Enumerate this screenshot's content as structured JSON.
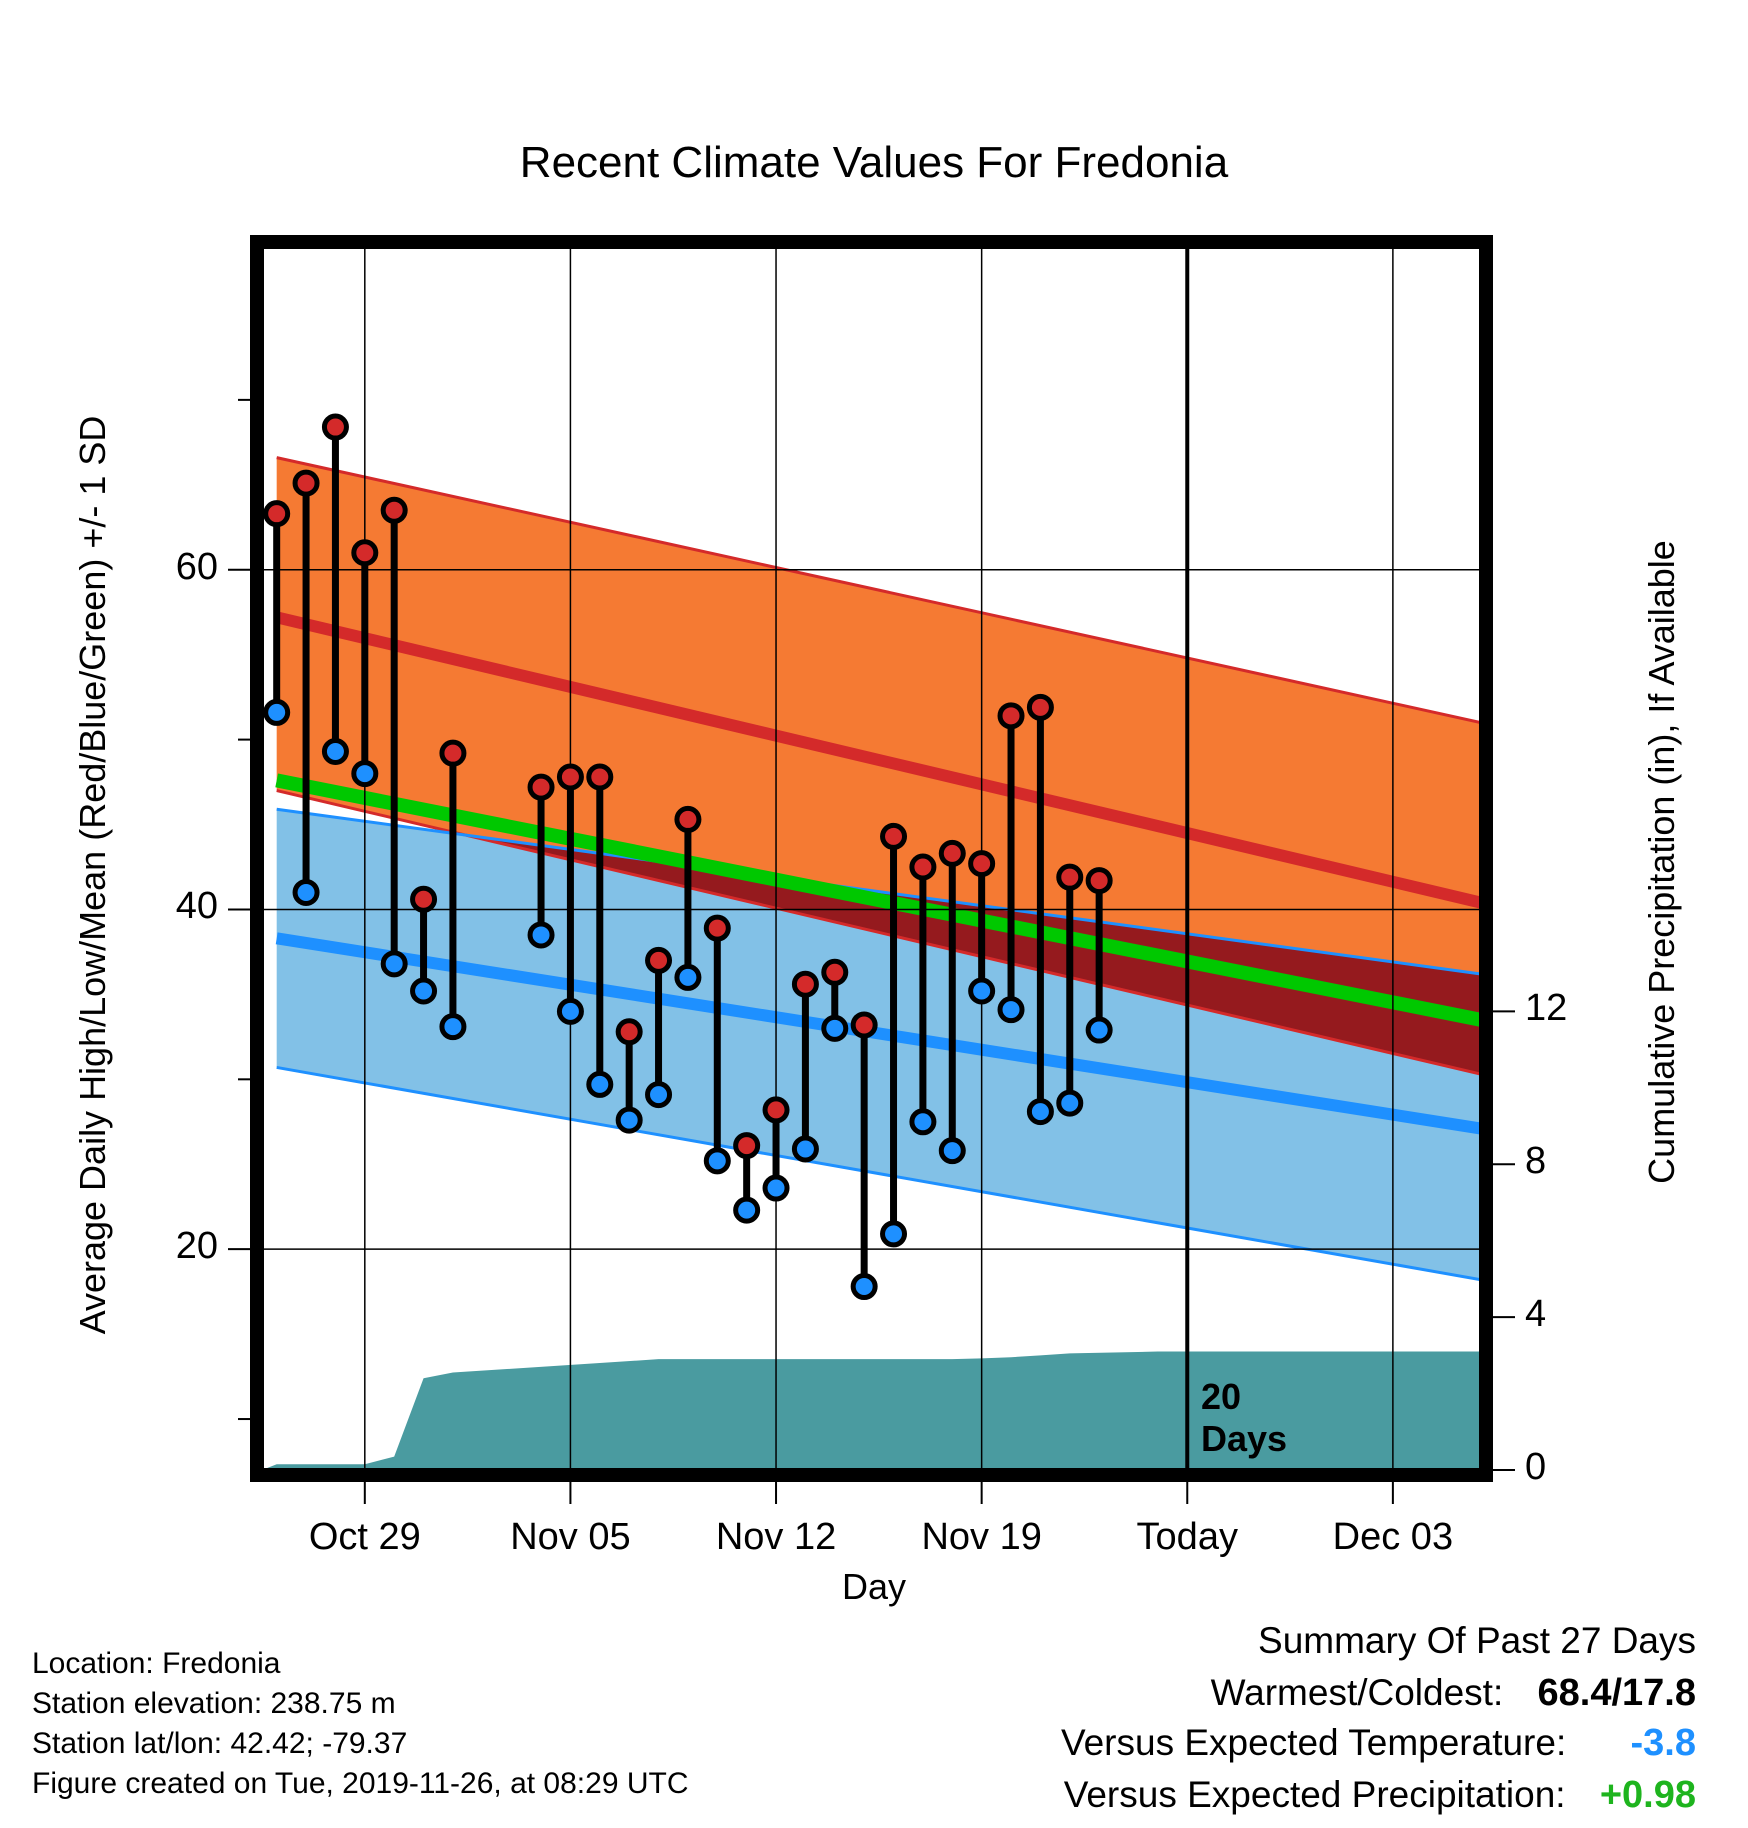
{
  "chart_data": {
    "type": "line",
    "title": "Recent Climate Values For Fredonia",
    "xlabel": "Day",
    "ylabel": "Average Daily High/Low/Mean (Red/Blue/Green) +/- 1 SD",
    "y2label": "Cumulative Precipitation (in), If Available",
    "ylim": [
      7,
      79
    ],
    "y2lim": [
      0,
      32
    ],
    "yticks": [
      20,
      40,
      60
    ],
    "yticks_labels": [
      "20",
      "40",
      "60"
    ],
    "y2ticks": [
      0,
      4,
      8,
      12
    ],
    "y2ticks_labels": [
      "0",
      "4",
      "8",
      "12"
    ],
    "xlim": [
      "2019-10-25 12:00",
      "2019-12-06"
    ],
    "xticks": [
      "2019-10-29",
      "2019-11-05",
      "2019-11-12",
      "2019-11-19",
      "2019-11-26",
      "2019-12-03"
    ],
    "xtick_labels": [
      "Oct 29",
      "Nov 05",
      "Nov 12",
      "Nov 19",
      "Today",
      "Dec 03"
    ],
    "grid": true,
    "today": "2019-11-26",
    "today_annotation": [
      "20",
      "Days"
    ],
    "normals": {
      "dates": [
        "2019-10-26",
        "2019-12-06"
      ],
      "high_mean": [
        57.2,
        40.4
      ],
      "high_upper": [
        66.6,
        51.0
      ],
      "high_lower": [
        47.0,
        30.3
      ],
      "low_mean": [
        38.3,
        27.1
      ],
      "low_upper": [
        45.9,
        36.2
      ],
      "low_lower": [
        30.7,
        18.2
      ],
      "mean": [
        47.6,
        33.5
      ]
    },
    "observed": {
      "dates": [
        "2019-10-26",
        "2019-10-27",
        "2019-10-28",
        "2019-10-29",
        "2019-10-30",
        "2019-10-31",
        "2019-11-01",
        "2019-11-04",
        "2019-11-05",
        "2019-11-06",
        "2019-11-07",
        "2019-11-08",
        "2019-11-09",
        "2019-11-10",
        "2019-11-11",
        "2019-11-12",
        "2019-11-13",
        "2019-11-14",
        "2019-11-15",
        "2019-11-16",
        "2019-11-17",
        "2019-11-18",
        "2019-11-19",
        "2019-11-20",
        "2019-11-21",
        "2019-11-22",
        "2019-11-23"
      ],
      "highs": [
        63.3,
        65.1,
        68.4,
        61.0,
        63.5,
        40.6,
        49.2,
        47.2,
        47.8,
        47.8,
        32.8,
        37.0,
        45.3,
        38.9,
        26.1,
        28.2,
        35.6,
        36.3,
        33.2,
        44.3,
        42.5,
        43.3,
        42.7,
        51.4,
        51.9,
        41.9,
        41.7
      ],
      "lows": [
        51.6,
        41.0,
        49.3,
        48.0,
        36.8,
        35.2,
        33.1,
        38.5,
        34.0,
        29.7,
        27.6,
        29.1,
        36.0,
        25.2,
        22.3,
        23.6,
        25.9,
        33.0,
        17.8,
        20.9,
        27.5,
        25.8,
        35.2,
        34.1,
        28.1,
        28.6,
        32.9
      ]
    },
    "precip": {
      "dates": [
        "2019-10-25 12:00",
        "2019-10-26",
        "2019-10-27",
        "2019-10-28",
        "2019-10-29",
        "2019-10-30",
        "2019-10-31",
        "2019-11-01",
        "2019-11-08",
        "2019-11-15",
        "2019-11-18",
        "2019-11-19",
        "2019-11-20",
        "2019-11-21",
        "2019-11-22",
        "2019-11-25",
        "2019-12-06"
      ],
      "values": [
        0.0,
        0.15,
        0.15,
        0.15,
        0.15,
        0.35,
        2.4,
        2.55,
        2.9,
        2.9,
        2.9,
        2.92,
        2.95,
        3.0,
        3.05,
        3.1,
        3.1
      ]
    },
    "colors": {
      "high_band": "#f57a33",
      "high_mean": "#d42a2a",
      "low_band": "#82c1e7",
      "low_mean": "#1e90ff",
      "overlap": "#951a1e",
      "mean": "#00c800",
      "precip": "#4a9ba0",
      "high_marker": "#d42a2a",
      "low_marker": "#1e90ff"
    }
  },
  "info": {
    "location": "Location: Fredonia",
    "elevation": "Station elevation: 238.75 m",
    "latlon": "Station lat/lon: 42.42; -79.37",
    "created": "Figure created on Tue, 2019-11-26, at 08:29 UTC"
  },
  "summary": {
    "heading": "Summary Of Past 27 Days",
    "warmest_coldest_label": "Warmest/Coldest:",
    "warmest_coldest_value": "68.4/17.8",
    "temp_label": "Versus Expected Temperature:",
    "temp_value": "-3.8",
    "temp_color": "#1e90ff",
    "precip_label": "Versus Expected Precipitation:",
    "precip_value": "+0.98",
    "precip_color": "#1eb41e"
  }
}
